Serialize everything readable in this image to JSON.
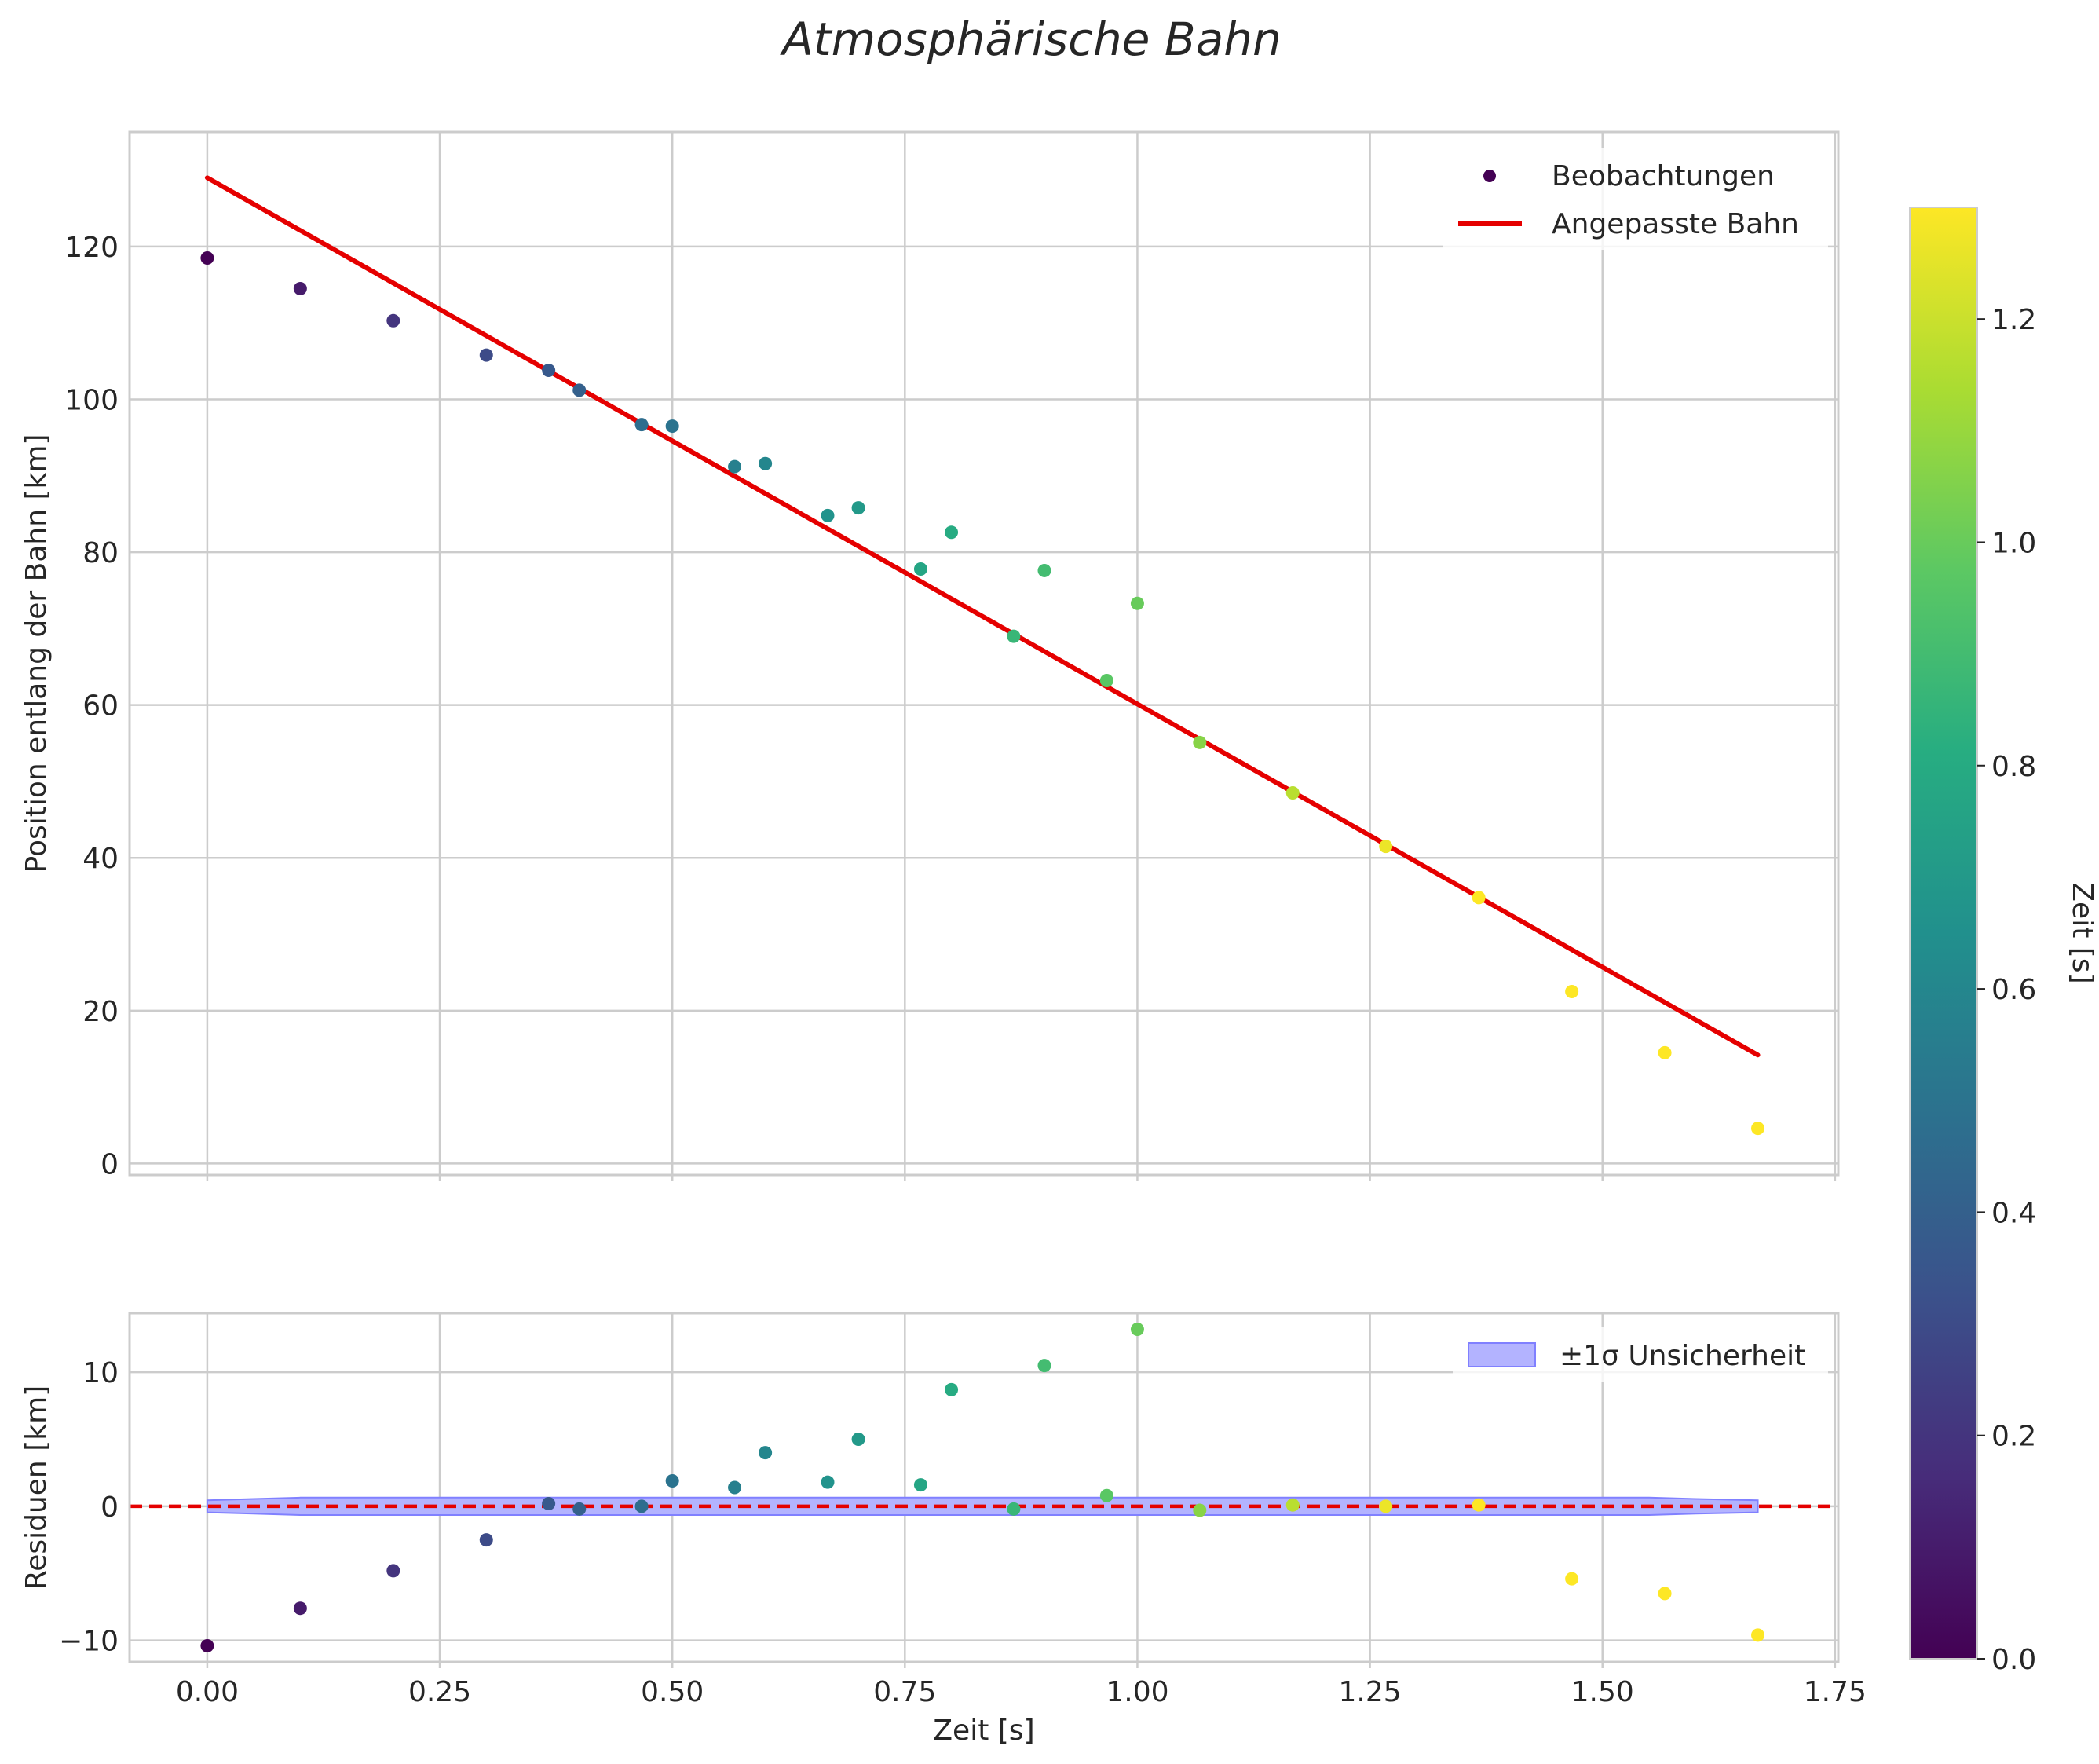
{
  "title": "Atmosphärische Bahn",
  "colors": {
    "fit_line": "#e50000",
    "zero_line": "#e50000",
    "band_fill": "#b3b3ff",
    "band_edge": "#8080ff",
    "grid": "#cccccc",
    "axes": "#cccccc"
  },
  "chart_data": [
    {
      "type": "scatter",
      "panel": "top",
      "ylabel": "Position entlang der Bahn [km]",
      "xlim": [
        -0.0835,
        1.7535
      ],
      "ylim": [
        -1.5,
        135
      ],
      "xticks": [
        0,
        0.25,
        0.5,
        0.75,
        1.0,
        1.25,
        1.5,
        1.75
      ],
      "yticks": [
        0,
        20,
        40,
        60,
        80,
        100,
        120
      ],
      "grid": true,
      "legend_position": "top-right",
      "series": [
        {
          "name": "Beobachtungen",
          "kind": "scatter",
          "x": [
            0.0,
            0.1,
            0.2,
            0.3,
            0.367,
            0.4,
            0.467,
            0.5,
            0.567,
            0.6,
            0.667,
            0.7,
            0.767,
            0.8,
            0.867,
            0.9,
            0.967,
            1.0,
            1.067,
            1.167,
            1.267,
            1.367,
            1.467,
            1.567,
            1.667
          ],
          "y": [
            118.5,
            114.5,
            110.3,
            105.8,
            103.8,
            101.2,
            96.7,
            96.5,
            91.2,
            91.6,
            84.8,
            85.8,
            77.8,
            82.6,
            69.0,
            77.6,
            63.2,
            73.3,
            55.1,
            48.5,
            41.5,
            34.8,
            22.5,
            14.5,
            4.6
          ],
          "color_by": [
            0.0,
            0.1,
            0.2,
            0.3,
            0.367,
            0.4,
            0.467,
            0.5,
            0.567,
            0.6,
            0.667,
            0.7,
            0.767,
            0.8,
            0.867,
            0.9,
            0.967,
            1.0,
            1.067,
            1.167,
            1.267,
            1.367,
            1.467,
            1.567,
            1.667
          ]
        },
        {
          "name": "Angepasste Bahn",
          "kind": "line",
          "x": [
            0.0,
            1.667
          ],
          "y": [
            129.0,
            14.2
          ]
        }
      ]
    },
    {
      "type": "scatter",
      "panel": "bottom",
      "xlabel": "Zeit [s]",
      "ylabel": "Residuen [km]",
      "xlim": [
        -0.0835,
        1.7535
      ],
      "ylim": [
        -11.6,
        14.4
      ],
      "xticks": [
        0,
        0.25,
        0.5,
        0.75,
        1.0,
        1.25,
        1.5,
        1.75
      ],
      "xtick_labels": [
        "0.00",
        "0.25",
        "0.50",
        "0.75",
        "1.00",
        "1.25",
        "1.50",
        "1.75"
      ],
      "yticks": [
        -10,
        0,
        10
      ],
      "yticklabels": [
        "−10",
        "0",
        "10"
      ],
      "grid": true,
      "legend_position": "top-right",
      "zero_line": 0,
      "band": {
        "label": "±1σ Unsicherheit",
        "x": [
          0.0,
          0.05,
          0.1,
          0.2,
          0.4,
          0.8,
          1.2,
          1.4,
          1.55,
          1.6,
          1.667
        ],
        "half_width": [
          0.45,
          0.55,
          0.65,
          0.65,
          0.65,
          0.65,
          0.65,
          0.65,
          0.65,
          0.55,
          0.45
        ]
      },
      "residuals": {
        "x": [
          0.0,
          0.1,
          0.2,
          0.3,
          0.367,
          0.4,
          0.467,
          0.5,
          0.567,
          0.6,
          0.667,
          0.7,
          0.767,
          0.8,
          0.867,
          0.9,
          0.967,
          1.0,
          1.067,
          1.167,
          1.267,
          1.367,
          1.467,
          1.567,
          1.667
        ],
        "y": [
          -10.4,
          -7.6,
          -4.8,
          -2.5,
          0.2,
          -0.2,
          0.0,
          1.9,
          1.4,
          4.0,
          1.8,
          5.0,
          1.6,
          8.7,
          -0.2,
          10.5,
          0.8,
          13.2,
          -0.3,
          0.1,
          0.0,
          0.1,
          -5.4,
          -6.5,
          -9.6
        ]
      }
    }
  ],
  "colorbar": {
    "label": "Zeit [s]",
    "range": [
      0,
      1.3
    ],
    "ticks": [
      0.0,
      0.2,
      0.4,
      0.6,
      0.8,
      1.0,
      1.2
    ],
    "ticklabels": [
      "0.0",
      "0.2",
      "0.4",
      "0.6",
      "0.8",
      "1.0",
      "1.2"
    ],
    "colormap": "viridis"
  }
}
